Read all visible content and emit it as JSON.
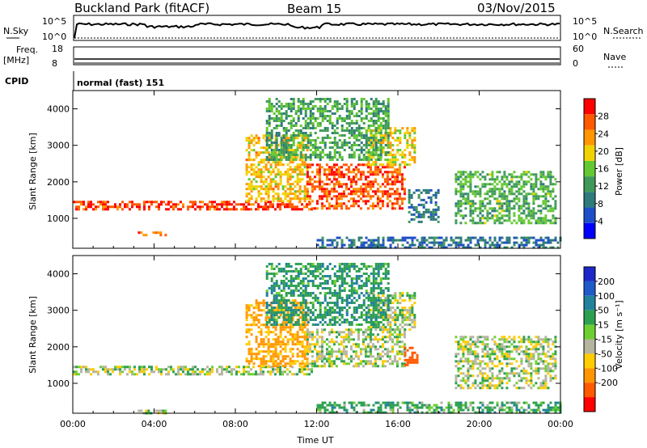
{
  "header": {
    "title": "Buckland Park (fitACF)",
    "beam": "Beam 15",
    "date": "03/Nov/2015"
  },
  "summary_panel": {
    "left_labels": {
      "nsky": "N.Sky",
      "freq": "Freq.",
      "freq_unit": "[MHz]",
      "cpid": "CPID"
    },
    "right_labels": {
      "nsearch": "N.Search",
      "nave": "Nave"
    },
    "noise_ticks": {
      "top": "10^5",
      "bottom": "10^0"
    },
    "freq_ticks": {
      "top": "18",
      "bottom": "8"
    },
    "nave_ticks": {
      "top": "60",
      "bottom": "0"
    },
    "cpid_text": "normal (fast) 151"
  },
  "chart_data": [
    {
      "type": "heatmap",
      "title": "",
      "xlabel": "Time UT",
      "ylabel": "Slant Range [km]",
      "x_ticks": [
        "00:00",
        "04:00",
        "08:00",
        "12:00",
        "16:00",
        "20:00",
        "00:00"
      ],
      "xlim": [
        0,
        24
      ],
      "ylim": [
        180,
        4500
      ],
      "y_ticks": [
        1000,
        2000,
        3000,
        4000
      ],
      "colorbar": {
        "label": "Power [dB]",
        "ticks": [
          4,
          8,
          12,
          16,
          20,
          24,
          28
        ],
        "range": [
          0,
          32
        ],
        "colors": [
          "#0000ff",
          "#1f4fc8",
          "#2f7a7a",
          "#3f9a5a",
          "#64c832",
          "#f0d200",
          "#ff9600",
          "#ff5a00",
          "#ff0000"
        ]
      },
      "regions": [
        {
          "t0": 0.0,
          "t1": 11.8,
          "r0": 1250,
          "r1": 1480,
          "v": 28
        },
        {
          "t0": 3.2,
          "t1": 4.6,
          "r0": 520,
          "r1": 640,
          "v": 25
        },
        {
          "t0": 8.5,
          "t1": 11.5,
          "r0": 1500,
          "r1": 3300,
          "v": 21
        },
        {
          "t0": 11.5,
          "t1": 16.3,
          "r0": 1300,
          "r1": 2500,
          "v": 27
        },
        {
          "t0": 14.5,
          "t1": 16.8,
          "r0": 2500,
          "r1": 3500,
          "v": 20
        },
        {
          "t0": 9.5,
          "t1": 15.5,
          "r0": 2600,
          "r1": 4300,
          "v": 13
        },
        {
          "t0": 16.5,
          "t1": 18.0,
          "r0": 900,
          "r1": 1800,
          "v": 9
        },
        {
          "t0": 18.8,
          "t1": 23.8,
          "r0": 900,
          "r1": 2300,
          "v": 14
        },
        {
          "t0": 12.0,
          "t1": 24.0,
          "r0": 200,
          "r1": 500,
          "v": 8
        }
      ]
    },
    {
      "type": "heatmap",
      "title": "",
      "xlabel": "Time UT",
      "ylabel": "Slant Range [km]",
      "x_ticks": [
        "00:00",
        "04:00",
        "08:00",
        "12:00",
        "16:00",
        "20:00",
        "00:00"
      ],
      "xlim": [
        0,
        24
      ],
      "ylim": [
        180,
        4500
      ],
      "y_ticks": [
        1000,
        2000,
        3000,
        4000
      ],
      "colorbar": {
        "label": "Velocity [m s⁻¹]",
        "ticks": [
          200,
          100,
          50,
          15,
          -15,
          -50,
          -100,
          -200
        ],
        "colors": [
          "#1e28c8",
          "#1e5ac8",
          "#23829b",
          "#2da050",
          "#6ecf32",
          "#b4b4a0",
          "#ffcc00",
          "#ff9600",
          "#ff5a00",
          "#ff0000"
        ]
      },
      "regions": [
        {
          "t0": 0.0,
          "t1": 11.8,
          "r0": 1250,
          "r1": 1480,
          "v": 0
        },
        {
          "t0": 3.2,
          "t1": 4.6,
          "r0": 150,
          "r1": 280,
          "v": 0
        },
        {
          "t0": 8.5,
          "t1": 11.5,
          "r0": 1500,
          "r1": 3300,
          "v": -60
        },
        {
          "t0": 11.5,
          "t1": 16.3,
          "r0": 1500,
          "r1": 2500,
          "v": 0
        },
        {
          "t0": 14.5,
          "t1": 16.8,
          "r0": 2500,
          "r1": 3500,
          "v": 0
        },
        {
          "t0": 16.3,
          "t1": 17.0,
          "r0": 1500,
          "r1": 2000,
          "v": -150
        },
        {
          "t0": 9.5,
          "t1": 15.5,
          "r0": 2600,
          "r1": 4300,
          "v": 40
        },
        {
          "t0": 18.8,
          "t1": 23.8,
          "r0": 900,
          "r1": 2300,
          "v": 0
        },
        {
          "t0": 12.0,
          "t1": 24.0,
          "r0": 200,
          "r1": 500,
          "v": 30
        }
      ]
    }
  ]
}
